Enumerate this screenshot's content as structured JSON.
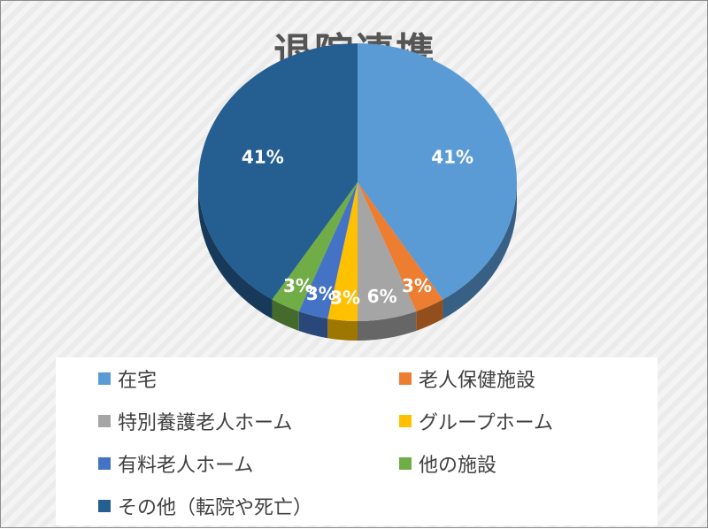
{
  "chart_data": {
    "type": "pie",
    "title": "退院連携",
    "categories": [
      "在宅",
      "老人保健施設",
      "特別養護老人ホーム",
      "グループホーム",
      "有料老人ホーム",
      "他の施設",
      "その他（転院や死亡）"
    ],
    "values": [
      41,
      3,
      6,
      3,
      3,
      3,
      41
    ],
    "data_labels": [
      "41%",
      "3%",
      "6%",
      "3%",
      "3%",
      "3%",
      "41%"
    ],
    "colors": [
      "#5b9bd5",
      "#ed7d31",
      "#a5a5a5",
      "#ffc000",
      "#4472c4",
      "#70ad47",
      "#255e91"
    ],
    "legend_position": "bottom",
    "style": "3d-pie"
  }
}
